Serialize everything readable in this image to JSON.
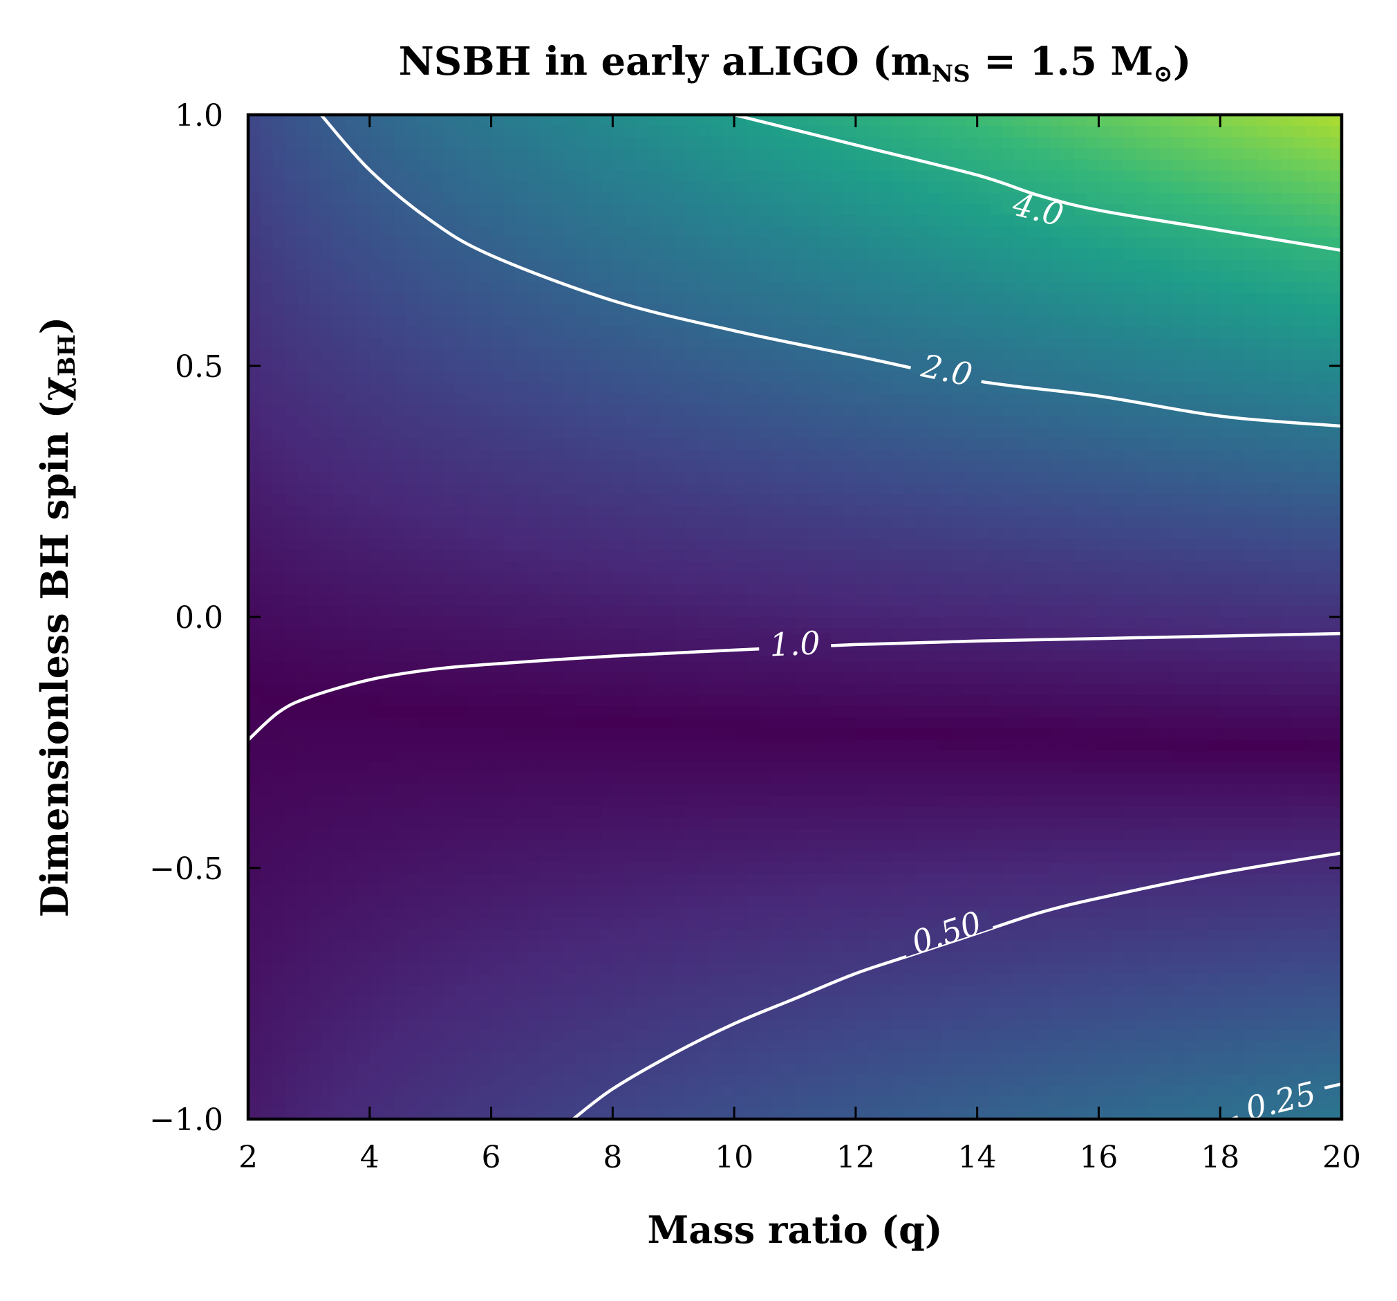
{
  "chart_data": {
    "type": "contour",
    "title": "NSBH in early aLIGO (m",
    "title_sub": "NS",
    "title_tail": " = 1.5 M",
    "title_sun": "⊙",
    "title_close": ")",
    "xlabel": "Mass ratio (q)",
    "ylabel": "Dimensionless BH spin (χ",
    "ylabel_sub": "BH",
    "ylabel_close": ")",
    "xlim": [
      2,
      20
    ],
    "ylim": [
      -1.0,
      1.0
    ],
    "xticks": [
      2,
      4,
      6,
      8,
      10,
      12,
      14,
      16,
      18,
      20
    ],
    "xtick_labels": [
      "2",
      "4",
      "6",
      "8",
      "10",
      "12",
      "14",
      "16",
      "18",
      "20"
    ],
    "yticks": [
      1.0,
      0.5,
      0.0,
      -0.5,
      -1.0
    ],
    "ytick_labels": [
      "1.0",
      "0.5",
      "0.0",
      "−0.5",
      "−1.0"
    ],
    "colormap": [
      "#440154",
      "#482878",
      "#3e4989",
      "#31688e",
      "#26828e",
      "#1f9e89",
      "#35b779",
      "#6ece58",
      "#b5de2b",
      "#fde725"
    ],
    "line_color": "#ffffff",
    "contours": [
      {
        "level": 4.0,
        "label": "4.0",
        "label_at": [
          15.0,
          0.81
        ],
        "points": [
          [
            10.0,
            1.0
          ],
          [
            12,
            0.94
          ],
          [
            14,
            0.88
          ],
          [
            15,
            0.84
          ],
          [
            16,
            0.81
          ],
          [
            18,
            0.77
          ],
          [
            20,
            0.73
          ]
        ]
      },
      {
        "level": 2.0,
        "label": "2.0",
        "label_at": [
          13.5,
          0.49
        ],
        "points": [
          [
            3.2,
            1.0
          ],
          [
            4,
            0.89
          ],
          [
            5,
            0.79
          ],
          [
            6,
            0.72
          ],
          [
            8,
            0.63
          ],
          [
            10,
            0.57
          ],
          [
            12,
            0.52
          ],
          [
            14,
            0.47
          ],
          [
            16,
            0.44
          ],
          [
            18,
            0.4
          ],
          [
            20,
            0.38
          ]
        ]
      },
      {
        "level": 1.0,
        "label": "1.0",
        "label_at": [
          11.0,
          -0.055
        ],
        "points": [
          [
            2.0,
            -0.245
          ],
          [
            2.5,
            -0.19
          ],
          [
            3,
            -0.16
          ],
          [
            4,
            -0.125
          ],
          [
            5,
            -0.105
          ],
          [
            6,
            -0.094
          ],
          [
            8,
            -0.078
          ],
          [
            10,
            -0.066
          ],
          [
            12,
            -0.055
          ],
          [
            14,
            -0.048
          ],
          [
            16,
            -0.043
          ],
          [
            18,
            -0.038
          ],
          [
            20,
            -0.033
          ]
        ]
      },
      {
        "level": 0.5,
        "label": "0.50",
        "label_at": [
          13.5,
          -0.63
        ],
        "points": [
          [
            7.35,
            -1.0
          ],
          [
            8,
            -0.94
          ],
          [
            9,
            -0.87
          ],
          [
            10,
            -0.81
          ],
          [
            11,
            -0.76
          ],
          [
            12,
            -0.71
          ],
          [
            13,
            -0.67
          ],
          [
            14,
            -0.63
          ],
          [
            15,
            -0.59
          ],
          [
            16,
            -0.56
          ],
          [
            18,
            -0.51
          ],
          [
            20,
            -0.47
          ]
        ]
      },
      {
        "level": 0.25,
        "label": "0.25",
        "label_at": [
          19.0,
          -0.965
        ],
        "points": [
          [
            18.2,
            -1.0
          ],
          [
            19,
            -0.96
          ],
          [
            20,
            -0.93
          ]
        ]
      }
    ]
  }
}
